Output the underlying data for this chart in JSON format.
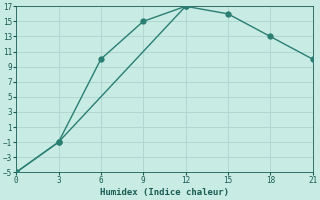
{
  "line1_x": [
    0,
    3,
    6,
    9,
    12
  ],
  "line1_y": [
    -5,
    -1,
    10,
    15,
    17
  ],
  "line2_x": [
    0,
    3,
    12,
    15,
    18,
    21
  ],
  "line2_y": [
    -5,
    -1,
    17,
    16,
    13,
    10
  ],
  "line_color": "#2a7f72",
  "bg_color": "#c8ebe4",
  "grid_color": "#b0d8d0",
  "xlabel": "Humidex (Indice chaleur)",
  "xlim": [
    0,
    21
  ],
  "ylim": [
    -5,
    17
  ],
  "xticks": [
    0,
    3,
    6,
    9,
    12,
    15,
    18,
    21
  ],
  "yticks": [
    -5,
    -3,
    -1,
    1,
    3,
    5,
    7,
    9,
    11,
    13,
    15,
    17
  ],
  "font_color": "#1a5c54",
  "marker_size": 3.5,
  "linewidth": 1.0
}
